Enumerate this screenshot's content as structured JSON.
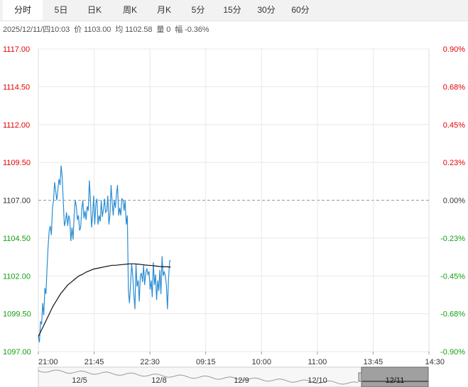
{
  "tabs": [
    {
      "label": "分时",
      "active": true
    },
    {
      "label": "5日"
    },
    {
      "label": "日K"
    },
    {
      "label": "周K"
    },
    {
      "label": "月K"
    },
    {
      "label": "5分"
    },
    {
      "label": "15分"
    },
    {
      "label": "30分"
    },
    {
      "label": "60分"
    }
  ],
  "info": {
    "datetime": "2025/12/11/四10:03",
    "price_label": "价",
    "price": "1103.00",
    "avg_label": "均",
    "avg": "1102.58",
    "volume_label": "量",
    "volume": "0",
    "change_label": "幅",
    "change": "-0.36%"
  },
  "colors": {
    "up": "#e60000",
    "down": "#14a014",
    "price_line": "#2b8dd3",
    "avg_line": "#111111",
    "grid": "#e8e8e8",
    "baseline": "#999999"
  },
  "chart_data": {
    "type": "line",
    "ylim": [
      1097.0,
      1117.0
    ],
    "prev_close": 1107.0,
    "y_ticks": [
      "1117.00",
      "1114.50",
      "1112.00",
      "1109.50",
      "1107.00",
      "1104.50",
      "1102.00",
      "1099.50",
      "1097.00"
    ],
    "pct_ticks": [
      "0.90%",
      "0.68%",
      "0.45%",
      "0.23%",
      "0.00%",
      "-0.23%",
      "-0.45%",
      "-0.68%",
      "-0.90%"
    ],
    "x_ticks": [
      "21:00",
      "21:45",
      "22:30",
      "09:15",
      "10:00",
      "11:00",
      "13:45",
      "14:30"
    ],
    "session_minutes": 360,
    "grid": true,
    "series": [
      {
        "values": [
          1098.0,
          1097.6,
          1099.0,
          1098.8,
          1100.2,
          1099.4,
          1101.2,
          1100.8,
          1102.5,
          1104.0,
          1105.0,
          1105.3,
          1104.7,
          1106.5,
          1107.0,
          1108.2,
          1107.6,
          1107.0,
          1107.7,
          1108.4,
          1108.0,
          1109.3,
          1108.5,
          1106.9,
          1105.3,
          1105.6,
          1106.2,
          1105.3,
          1106.0,
          1105.7,
          1104.3,
          1105.2,
          1104.4,
          1106.0,
          1107.0,
          1106.6,
          1105.7,
          1106.0,
          1105.0,
          1105.2,
          1106.4,
          1107.0,
          1105.8,
          1106.3,
          1105.7,
          1106.6,
          1106.3,
          1108.3,
          1107.1,
          1105.2,
          1106.0,
          1107.3,
          1105.4,
          1106.8,
          1107.1,
          1105.4,
          1106.0,
          1105.6,
          1107.0,
          1105.9,
          1106.4,
          1107.1,
          1106.2,
          1106.3,
          1107.3,
          1105.4,
          1106.0,
          1108.0,
          1106.9,
          1106.0,
          1107.0,
          1106.5,
          1107.4,
          1108.0,
          1106.0,
          1106.5,
          1106.0,
          1107.1,
          1107.0,
          1106.3,
          1107.0,
          1105.4,
          1106.0,
          1101.0,
          1100.2,
          1101.5,
          1102.8,
          1102.0,
          1100.8,
          1099.8,
          1102.8,
          1101.3,
          1101.7,
          1100.3,
          1102.0,
          1102.2,
          1101.6,
          1102.7,
          1101.4,
          1102.2,
          1102.5,
          1102.1,
          1102.3,
          1101.1,
          1101.7,
          1100.6,
          1102.9,
          1101.4,
          1102.1,
          1100.4,
          1101.7,
          1101.0,
          1102.4,
          1100.8,
          1103.3,
          1102.0,
          1102.3,
          1102.0,
          1101.4,
          1099.8,
          1101.8,
          1103.0,
          1103.0
        ]
      },
      {
        "values": [
          1098.0,
          1098.5,
          1099.0,
          1099.5,
          1100.0,
          1100.4,
          1100.8,
          1101.1,
          1101.4,
          1101.6,
          1101.8,
          1102.0,
          1102.1,
          1102.25,
          1102.35,
          1102.45,
          1102.5,
          1102.55,
          1102.6,
          1102.65,
          1102.7,
          1102.7,
          1102.73,
          1102.75,
          1102.78,
          1102.8,
          1102.8,
          1102.78,
          1102.75,
          1102.72,
          1102.7,
          1102.68,
          1102.65,
          1102.62,
          1102.6,
          1102.6,
          1102.58
        ]
      }
    ],
    "navigator": {
      "labels": [
        "12/5",
        "12/8",
        "12/9",
        "12/10",
        "12/11"
      ]
    }
  }
}
